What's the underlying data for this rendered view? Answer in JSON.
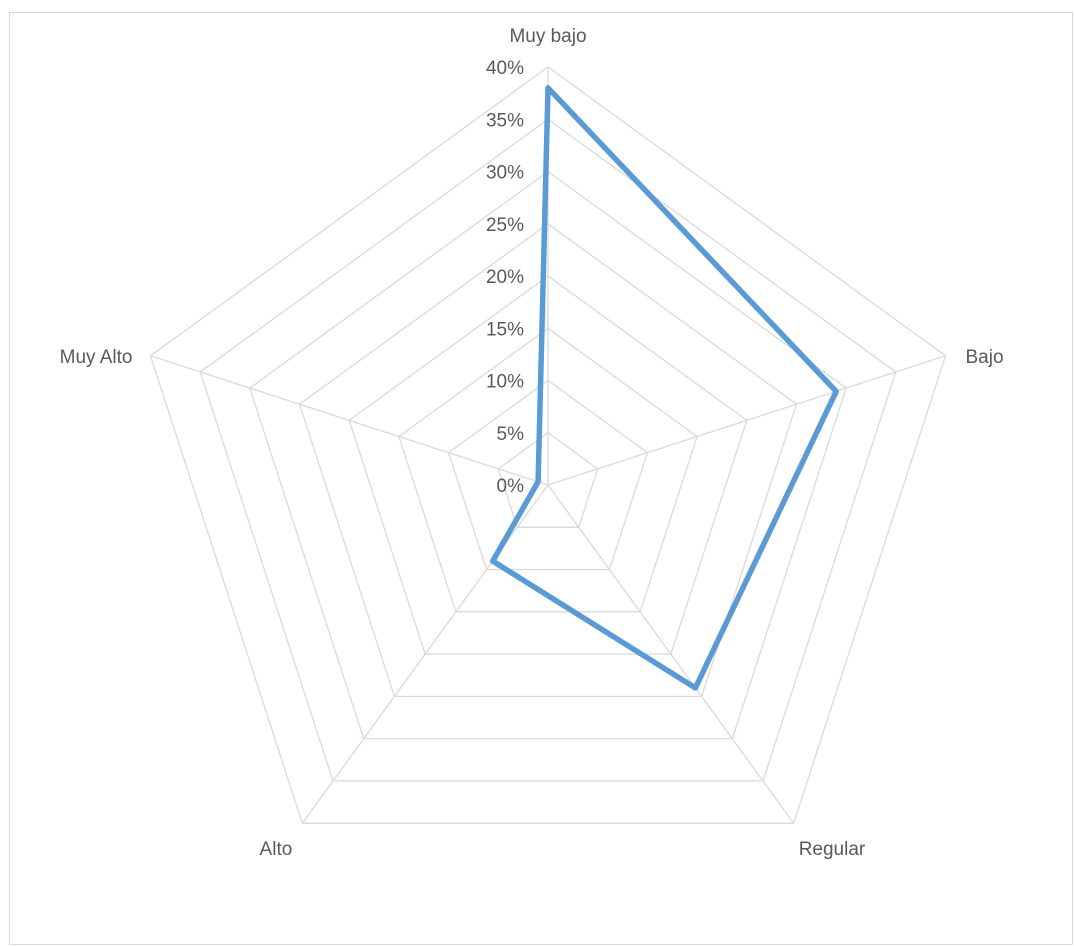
{
  "chart_data": {
    "type": "radar",
    "categories": [
      "Muy bajo",
      "Bajo",
      "Regular",
      "Alto",
      "Muy Alto"
    ],
    "series": [
      {
        "values": [
          0.38,
          0.29,
          0.24,
          0.09,
          0.01
        ],
        "color": "#5b9bd5"
      }
    ],
    "rlim": [
      0,
      0.4
    ],
    "r_ticks": [
      0,
      0.05,
      0.1,
      0.15,
      0.2,
      0.25,
      0.3,
      0.35,
      0.4
    ],
    "r_tick_labels": [
      "0%",
      "5%",
      "10%",
      "15%",
      "20%",
      "25%",
      "30%",
      "35%",
      "40%"
    ],
    "grid": true,
    "grid_color": "#d9d9d9",
    "label_color": "#595959",
    "legend": "none"
  }
}
